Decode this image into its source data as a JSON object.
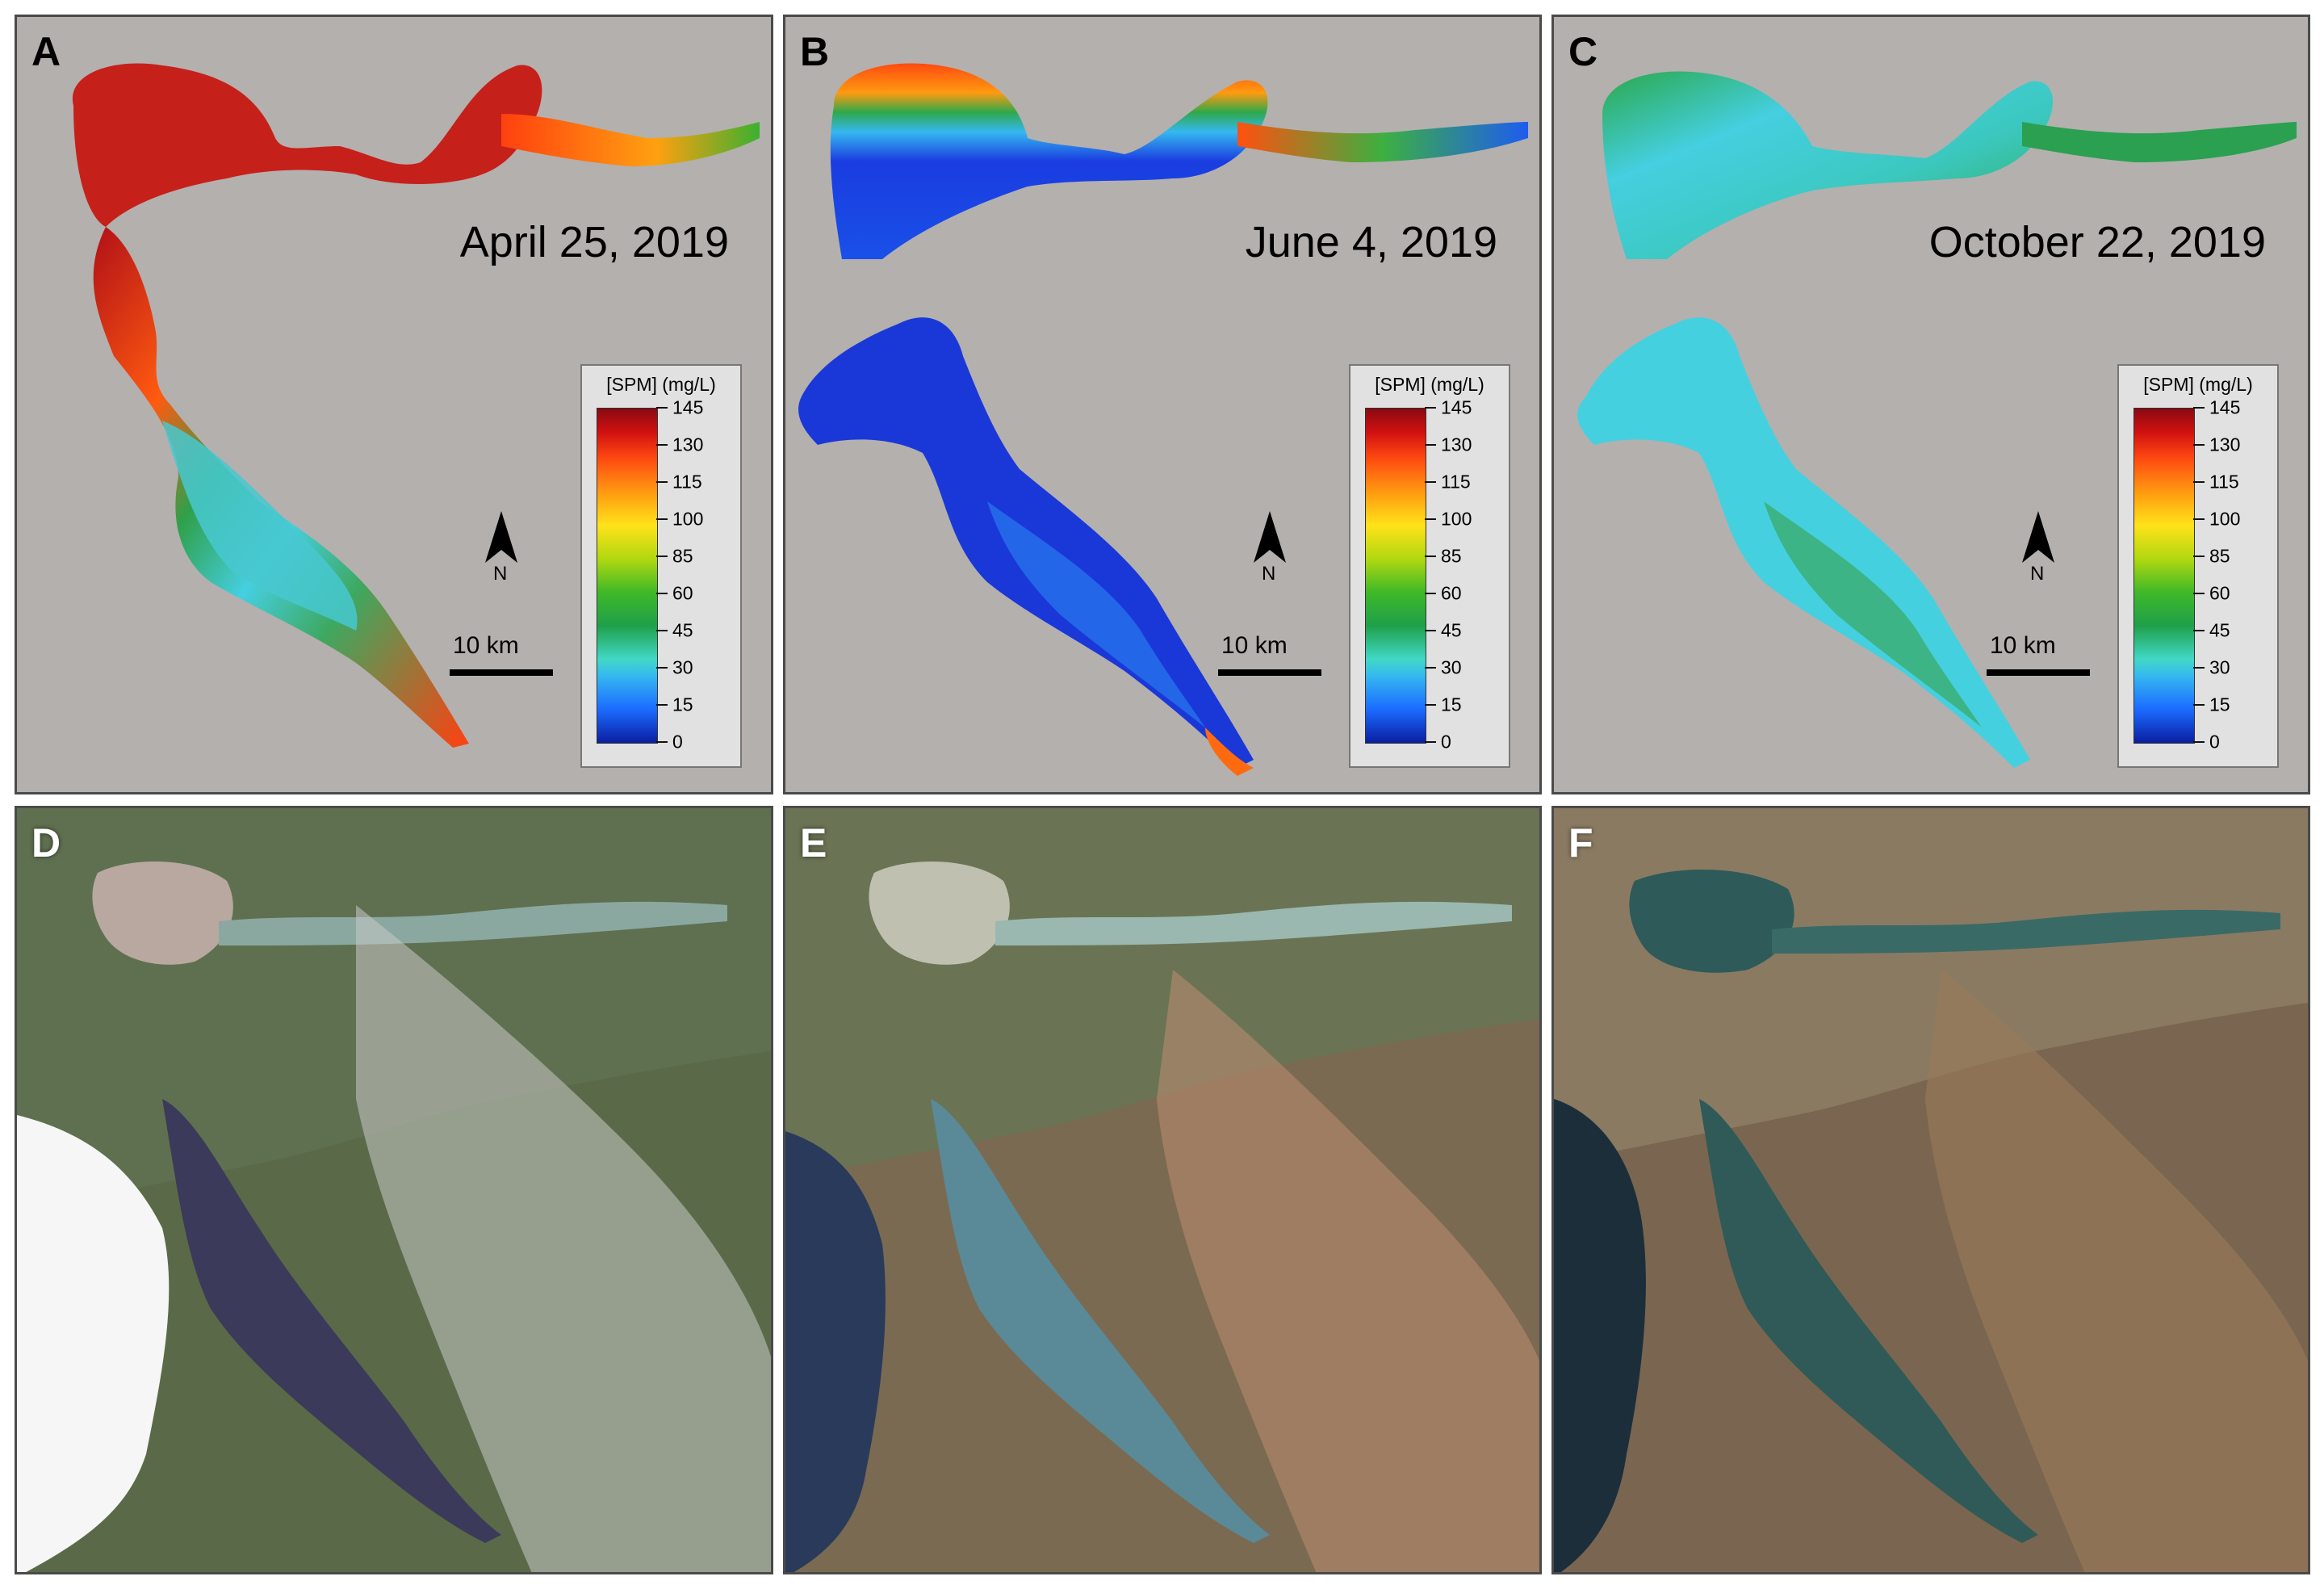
{
  "panels_top": [
    {
      "letter": "A",
      "date": "April 25, 2019"
    },
    {
      "letter": "B",
      "date": "June 4, 2019"
    },
    {
      "letter": "C",
      "date": "October 22, 2019"
    }
  ],
  "panels_bottom": [
    {
      "letter": "D"
    },
    {
      "letter": "E"
    },
    {
      "letter": "F"
    }
  ],
  "legend": {
    "title": "[SPM] (mg/L)",
    "ticks": [
      "145",
      "130",
      "115",
      "100",
      "85",
      "60",
      "45",
      "30",
      "15",
      "0"
    ],
    "min": 0,
    "max": 145
  },
  "north_label": "N",
  "scale_label": "10 km",
  "colors": {
    "panel_background": "#b4b0ae",
    "panel_border": "#4a4a4a"
  }
}
